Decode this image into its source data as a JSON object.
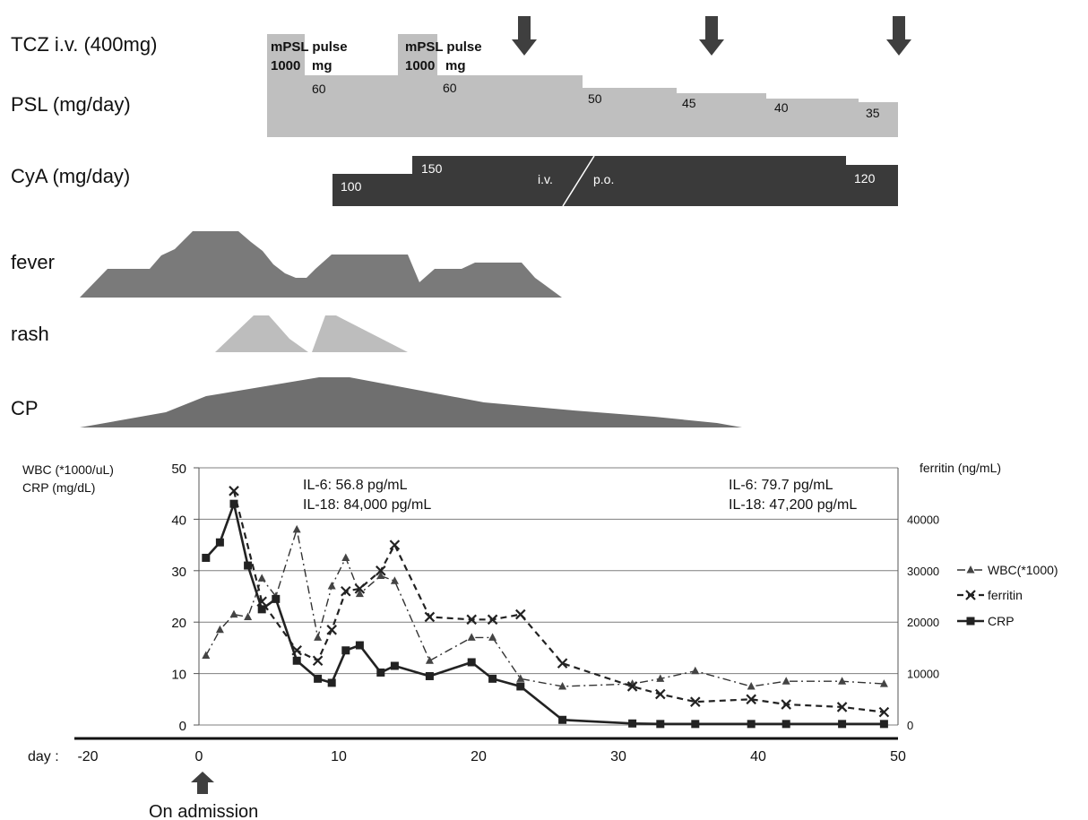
{
  "colors": {
    "arrow": "#3f3f3f",
    "psl": "#bfbfbf",
    "cya": "#3a3a3a",
    "fever": "#7a7a7a",
    "rash": "#bdbdbd",
    "cp": "#6f6f6f",
    "series": "#222222",
    "grid": "#7f7f7f"
  },
  "labels": {
    "tcz": "TCZ i.v. (400mg)",
    "psl": "PSL (mg/day)",
    "cya": "CyA (mg/day)",
    "fever": "fever",
    "rash": "rash",
    "cp": "CP",
    "day": "day :",
    "admission": "On admission"
  },
  "pulses": [
    {
      "title": "mPSL pulse",
      "dose": "1000",
      "unit": "mg"
    },
    {
      "title": "mPSL pulse",
      "dose": "1000",
      "unit": "mg"
    }
  ],
  "psl_doses": [
    "60",
    "60",
    "50",
    "45",
    "40",
    "35"
  ],
  "cya": {
    "doses": [
      "100",
      "150",
      "120"
    ],
    "route_iv": "i.v.",
    "route_po": "p.o."
  },
  "chart_data": {
    "type": "line",
    "x_axis_label": "day",
    "x_ticks": [
      -20,
      0,
      10,
      20,
      30,
      40,
      50
    ],
    "xlim": [
      -20,
      50
    ],
    "left_axis": {
      "label_1": "WBC (*1000/uL)",
      "label_2": "CRP  (mg/dL)",
      "ylim": [
        0,
        50
      ],
      "ticks": [
        0,
        10,
        20,
        30,
        40,
        50
      ]
    },
    "right_axis": {
      "label": "ferritin  (ng/mL)",
      "ylim": [
        0,
        50000
      ],
      "ticks": [
        0,
        10000,
        20000,
        30000,
        40000
      ]
    },
    "grid": true,
    "legend_position": "right",
    "annotations": [
      {
        "line1": "IL-6: 56.8 pg/mL",
        "line2": "IL-18: 84,000 pg/mL"
      },
      {
        "line1": "IL-6: 79.7 pg/mL",
        "line2": "IL-18: 47,200 pg/mL"
      }
    ],
    "series": [
      {
        "name": "WBC(*1000)",
        "axis": "left",
        "marker": "triangle",
        "line": "dash-dot",
        "x": [
          0.5,
          1.5,
          2.5,
          3.5,
          4.5,
          5.5,
          7,
          8.5,
          9.5,
          10.5,
          11.5,
          13,
          14,
          16.5,
          19.5,
          21,
          23,
          26,
          31,
          33,
          35.5,
          39.5,
          42,
          46,
          49
        ],
        "y": [
          13.5,
          18.5,
          21.5,
          21,
          28.5,
          25,
          38,
          17,
          27,
          32.5,
          25.5,
          29,
          28,
          12.5,
          17,
          17,
          9,
          7.5,
          8,
          9,
          10.5,
          7.5,
          8.5,
          8.5,
          8
        ]
      },
      {
        "name": "ferritin",
        "axis": "right",
        "marker": "x",
        "line": "dashed",
        "x": [
          2.5,
          4.5,
          7,
          8.5,
          9.5,
          10.5,
          11.5,
          13,
          14,
          16.5,
          19.5,
          21,
          23,
          26,
          31,
          33,
          35.5,
          39.5,
          42,
          46,
          49
        ],
        "y": [
          45500,
          24000,
          14500,
          12500,
          18500,
          26000,
          26500,
          30000,
          35000,
          21000,
          20500,
          20500,
          21500,
          12000,
          7500,
          6000,
          4500,
          5000,
          4000,
          3500,
          2500
        ]
      },
      {
        "name": "CRP",
        "axis": "left",
        "marker": "square",
        "line": "solid",
        "x": [
          0.5,
          1.5,
          2.5,
          3.5,
          4.5,
          5.5,
          7,
          8.5,
          9.5,
          10.5,
          11.5,
          13,
          14,
          16.5,
          19.5,
          21,
          23,
          26,
          31,
          33,
          35.5,
          39.5,
          42,
          46,
          49
        ],
        "y": [
          32.5,
          35.5,
          43,
          31,
          22.5,
          24.5,
          12.5,
          9,
          8.2,
          14.5,
          15.5,
          10.2,
          11.5,
          9.5,
          12.2,
          9,
          7.5,
          1,
          0.3,
          0.2,
          0.2,
          0.2,
          0.2,
          0.2,
          0.2
        ]
      }
    ]
  }
}
